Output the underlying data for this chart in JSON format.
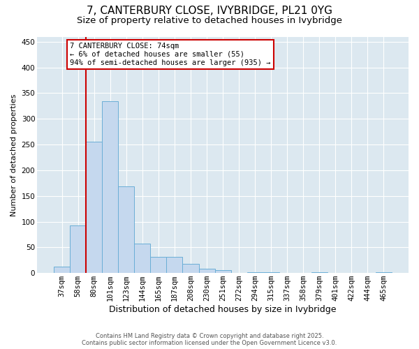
{
  "title": "7, CANTERBURY CLOSE, IVYBRIDGE, PL21 0YG",
  "subtitle": "Size of property relative to detached houses in Ivybridge",
  "xlabel": "Distribution of detached houses by size in Ivybridge",
  "ylabel": "Number of detached properties",
  "categories": [
    "37sqm",
    "58sqm",
    "80sqm",
    "101sqm",
    "123sqm",
    "144sqm",
    "165sqm",
    "187sqm",
    "208sqm",
    "230sqm",
    "251sqm",
    "272sqm",
    "294sqm",
    "315sqm",
    "337sqm",
    "358sqm",
    "379sqm",
    "401sqm",
    "422sqm",
    "444sqm",
    "465sqm"
  ],
  "values": [
    13,
    93,
    255,
    335,
    168,
    57,
    32,
    32,
    18,
    9,
    6,
    0,
    2,
    2,
    0,
    0,
    1,
    0,
    0,
    0,
    1
  ],
  "bar_color": "#c5d8ee",
  "bar_edge_color": "#6aaed6",
  "vline_index": 2,
  "vline_color": "#cc0000",
  "ann_line1": "7 CANTERBURY CLOSE: 74sqm",
  "ann_line2": "← 6% of detached houses are smaller (55)",
  "ann_line3": "94% of semi-detached houses are larger (935) →",
  "ann_box_facecolor": "#ffffff",
  "ann_box_edgecolor": "#cc0000",
  "ylim": [
    0,
    460
  ],
  "yticks": [
    0,
    50,
    100,
    150,
    200,
    250,
    300,
    350,
    400,
    450
  ],
  "plot_bg_color": "#dce8f0",
  "grid_color": "#ffffff",
  "footer1": "Contains HM Land Registry data © Crown copyright and database right 2025.",
  "footer2": "Contains public sector information licensed under the Open Government Licence v3.0.",
  "title_fontsize": 11,
  "subtitle_fontsize": 9.5,
  "xlabel_fontsize": 9,
  "ylabel_fontsize": 8,
  "tick_fontsize": 7.5,
  "ann_fontsize": 7.5,
  "footer_fontsize": 6
}
